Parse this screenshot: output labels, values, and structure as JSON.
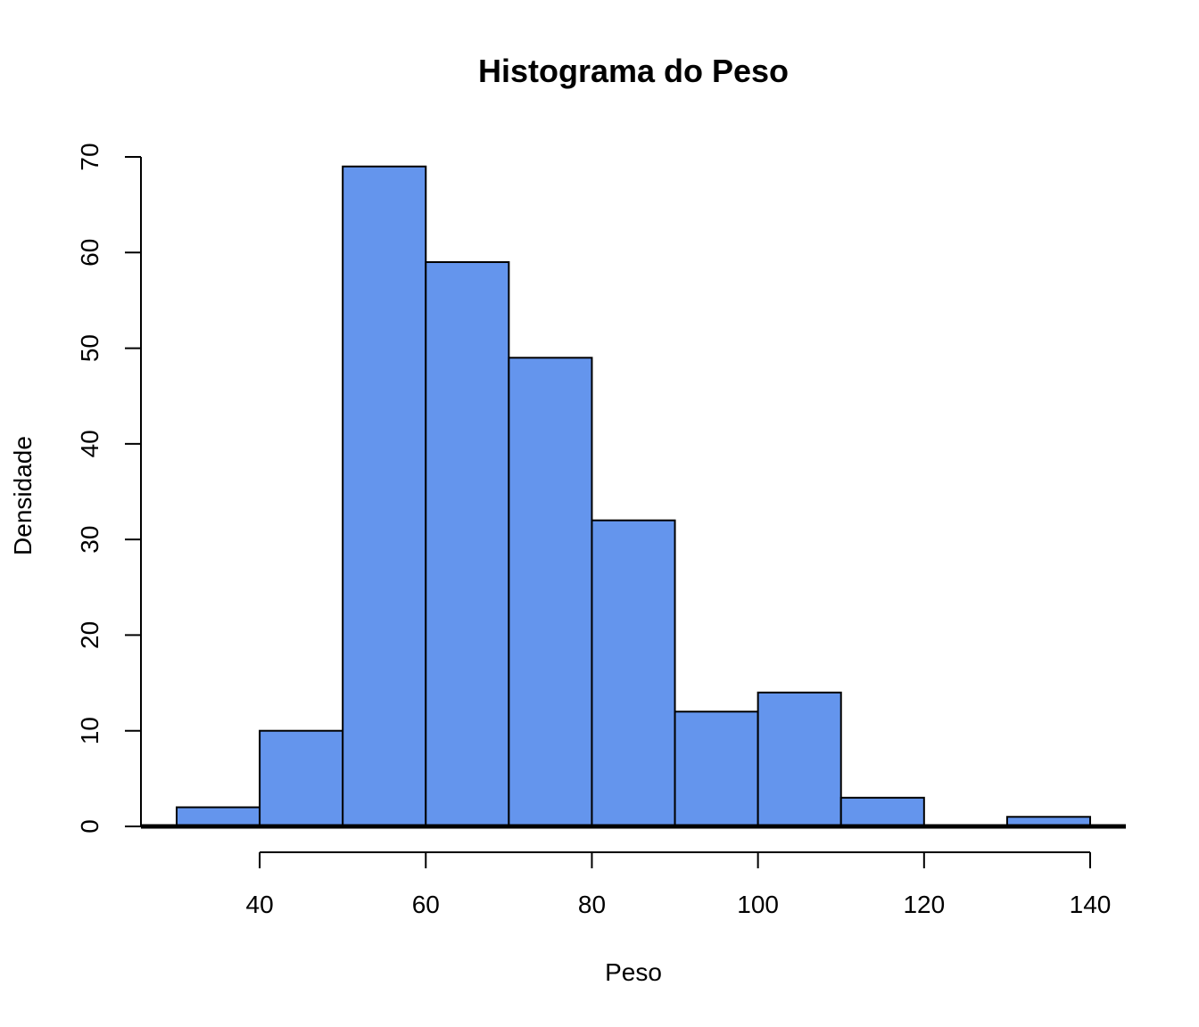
{
  "colors": {
    "bar_fill": "#6495ED",
    "bar_stroke": "#000000",
    "density_line": "#000000",
    "background": "#FFFFFF"
  },
  "chart_data": {
    "type": "bar",
    "title": "Histograma do Peso",
    "xlabel": "Peso",
    "ylabel": "Densidade",
    "xlim": [
      30,
      140
    ],
    "ylim": [
      0,
      70
    ],
    "x_ticks": [
      40,
      60,
      80,
      100,
      120,
      140
    ],
    "y_ticks": [
      0,
      10,
      20,
      30,
      40,
      50,
      60,
      70
    ],
    "bins": [
      {
        "x0": 30,
        "x1": 40,
        "count": 2
      },
      {
        "x0": 40,
        "x1": 50,
        "count": 10
      },
      {
        "x0": 50,
        "x1": 60,
        "count": 69
      },
      {
        "x0": 60,
        "x1": 70,
        "count": 59
      },
      {
        "x0": 70,
        "x1": 80,
        "count": 49
      },
      {
        "x0": 80,
        "x1": 90,
        "count": 32
      },
      {
        "x0": 90,
        "x1": 100,
        "count": 12
      },
      {
        "x0": 100,
        "x1": 110,
        "count": 14
      },
      {
        "x0": 110,
        "x1": 120,
        "count": 3
      },
      {
        "x0": 120,
        "x1": 130,
        "count": 0
      },
      {
        "x0": 130,
        "x1": 140,
        "count": 1
      }
    ],
    "grid": false,
    "legend": "none",
    "overlay": "density curve (near zero on count scale)"
  }
}
